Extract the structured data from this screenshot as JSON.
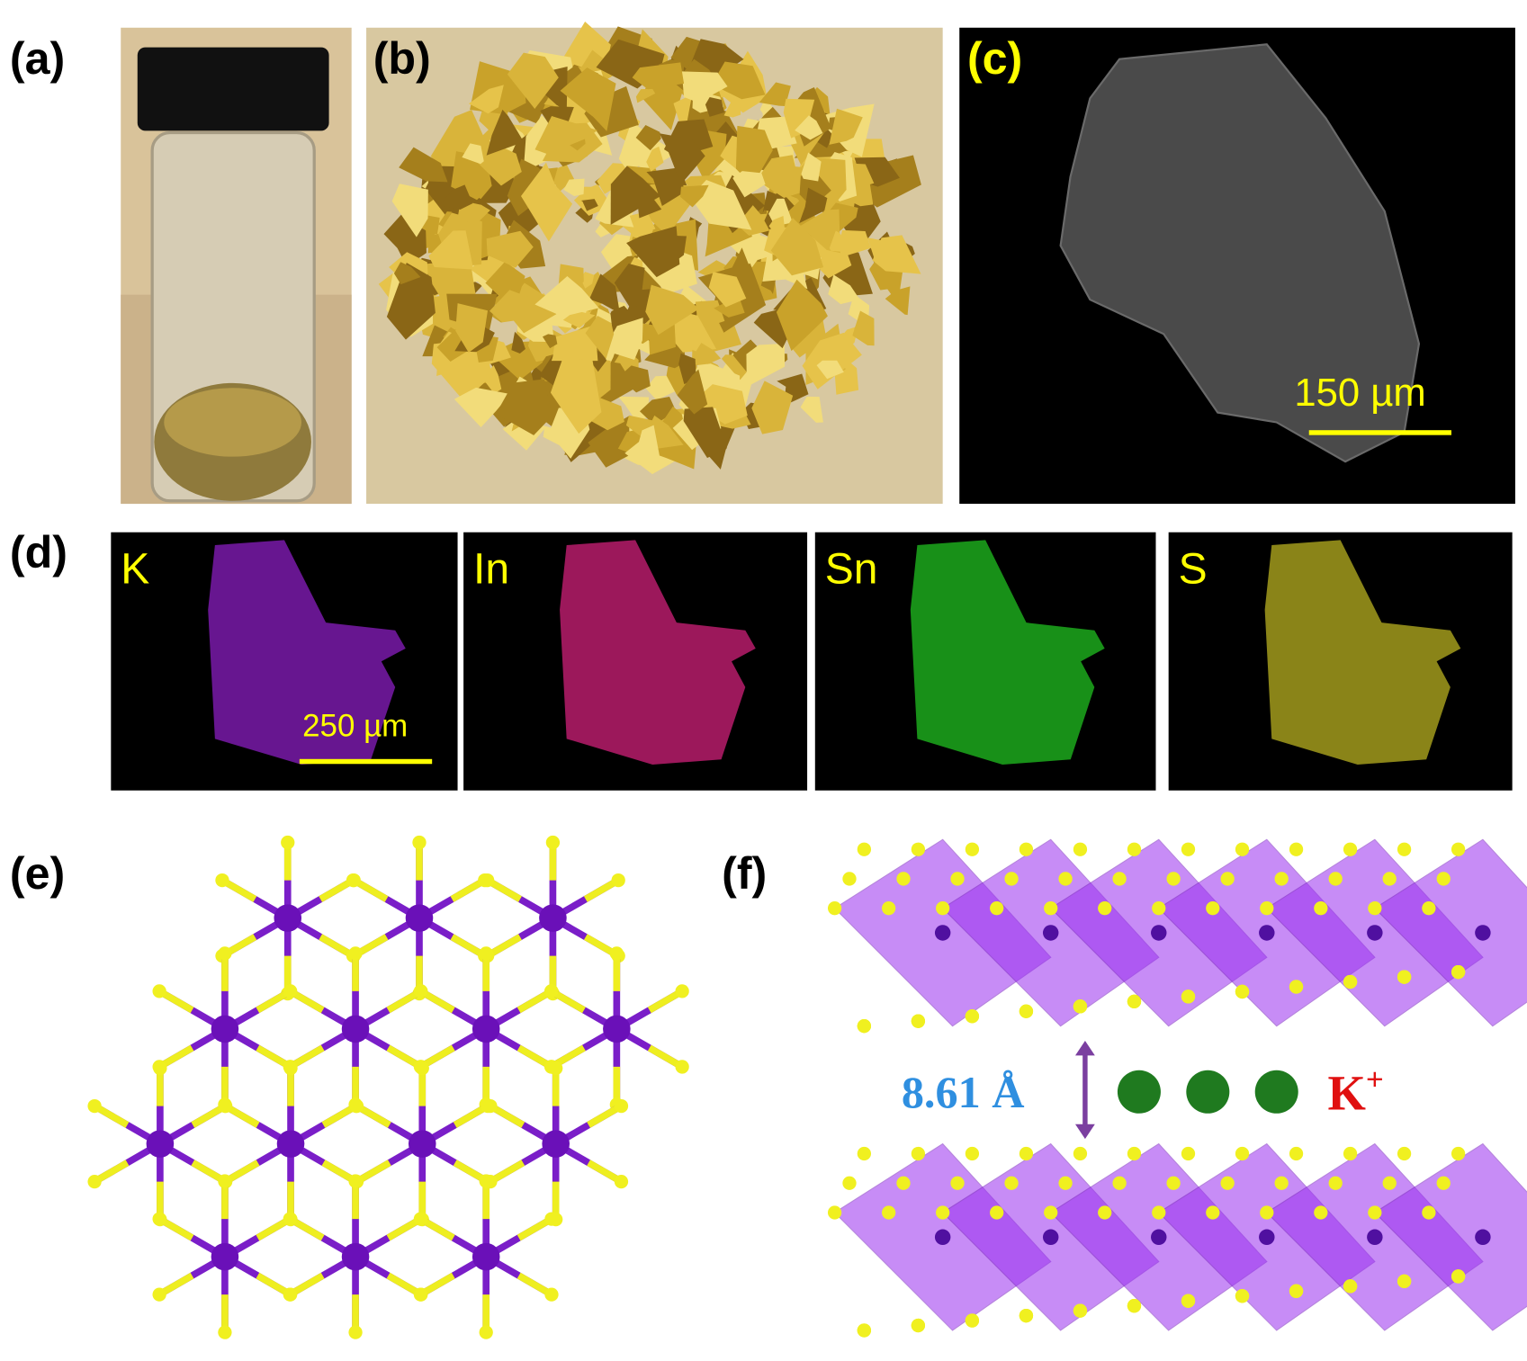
{
  "panels": [
    {
      "label": "(a)"
    },
    {
      "label": "(b)"
    },
    {
      "label": "(c)",
      "scale_bar": "150 µm"
    },
    {
      "label": "(d)",
      "maps": [
        "K",
        "In",
        "Sn",
        "S"
      ],
      "scale_bar": "250 µm"
    },
    {
      "label": "(e)"
    },
    {
      "label": "(f)",
      "spacing": "8.61 Å",
      "ion": "K",
      "ion_charge": "+"
    }
  ]
}
